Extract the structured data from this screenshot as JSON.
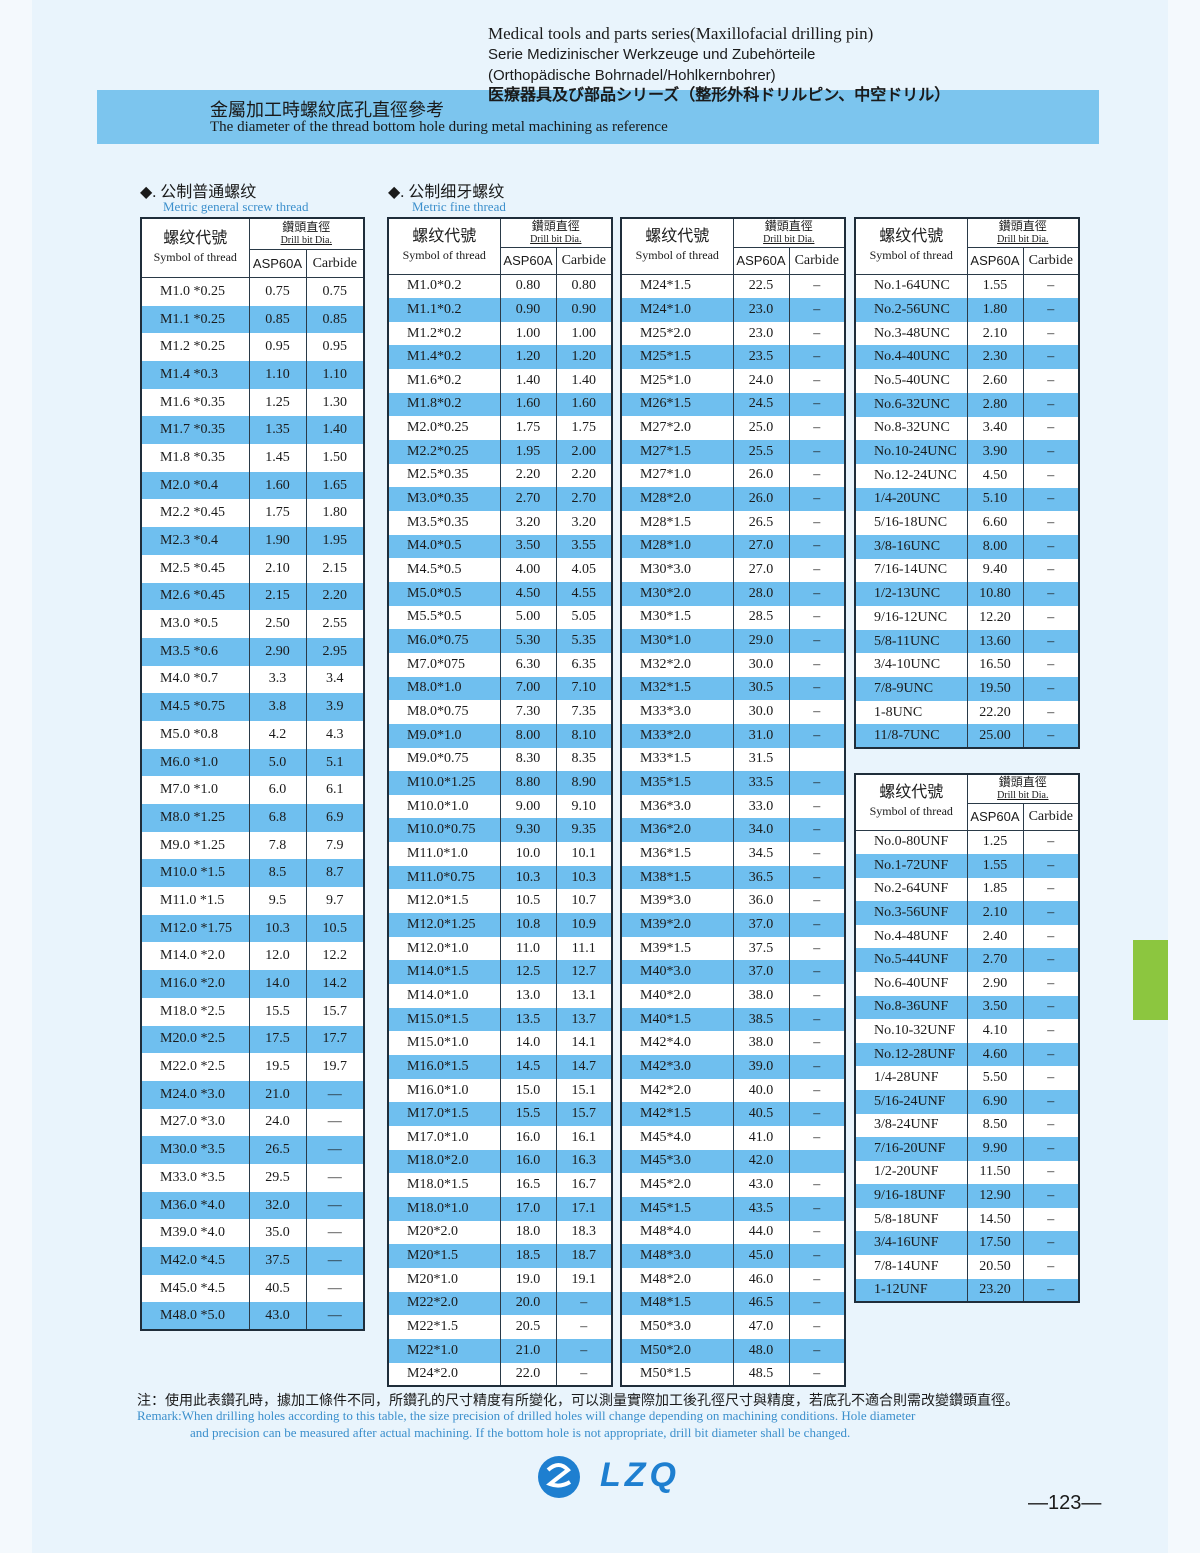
{
  "header": {
    "title_lines": [
      "Medical tools and parts series(Maxillofacial drilling pin)",
      "Serie Medizinischer Werkzeuge und Zubehörteile",
      "(Orthopädische Bohrnadel/Hohlkernbohrer)",
      "医療器具及び部品シリーズ（整形外科ドリルピン、中空ドリル）"
    ]
  },
  "banner": {
    "title_zh": "金屬加工時螺紋底孔直徑參考",
    "title_en": "The diameter of the thread bottom hole during metal machining as reference"
  },
  "sections": [
    {
      "title": "◆. 公制普通螺纹",
      "subtitle": "Metric general screw thread"
    },
    {
      "title": "◆. 公制细牙螺纹",
      "subtitle": "Metric fine thread"
    }
  ],
  "table_header": {
    "symbol_zh": "螺纹代號",
    "symbol_en": "Symbol of thread",
    "drill_zh": "鑽頭直徑",
    "drill_en": "Drill bit Dia.",
    "asp": "ASP60A",
    "carbide": "Carbide"
  },
  "tables": [
    {
      "rows": [
        [
          "M1.0 *0.25",
          "0.75",
          "0.75"
        ],
        [
          "M1.1 *0.25",
          "0.85",
          "0.85"
        ],
        [
          "M1.2 *0.25",
          "0.95",
          "0.95"
        ],
        [
          "M1.4 *0.3",
          "1.10",
          "1.10"
        ],
        [
          "M1.6 *0.35",
          "1.25",
          "1.30"
        ],
        [
          "M1.7 *0.35",
          "1.35",
          "1.40"
        ],
        [
          "M1.8 *0.35",
          "1.45",
          "1.50"
        ],
        [
          "M2.0 *0.4",
          "1.60",
          "1.65"
        ],
        [
          "M2.2 *0.45",
          "1.75",
          "1.80"
        ],
        [
          "M2.3 *0.4",
          "1.90",
          "1.95"
        ],
        [
          "M2.5 *0.45",
          "2.10",
          "2.15"
        ],
        [
          "M2.6 *0.45",
          "2.15",
          "2.20"
        ],
        [
          "M3.0 *0.5",
          "2.50",
          "2.55"
        ],
        [
          "M3.5 *0.6",
          "2.90",
          "2.95"
        ],
        [
          "M4.0 *0.7",
          "3.3",
          "3.4"
        ],
        [
          "M4.5 *0.75",
          "3.8",
          "3.9"
        ],
        [
          "M5.0 *0.8",
          "4.2",
          "4.3"
        ],
        [
          "M6.0 *1.0",
          "5.0",
          "5.1"
        ],
        [
          "M7.0 *1.0",
          "6.0",
          "6.1"
        ],
        [
          "M8.0 *1.25",
          "6.8",
          "6.9"
        ],
        [
          "M9.0 *1.25",
          "7.8",
          "7.9"
        ],
        [
          "M10.0 *1.5",
          "8.5",
          "8.7"
        ],
        [
          "M11.0 *1.5",
          "9.5",
          "9.7"
        ],
        [
          "M12.0 *1.75",
          "10.3",
          "10.5"
        ],
        [
          "M14.0 *2.0",
          "12.0",
          "12.2"
        ],
        [
          "M16.0 *2.0",
          "14.0",
          "14.2"
        ],
        [
          "M18.0 *2.5",
          "15.5",
          "15.7"
        ],
        [
          "M20.0 *2.5",
          "17.5",
          "17.7"
        ],
        [
          "M22.0 *2.5",
          "19.5",
          "19.7"
        ],
        [
          "M24.0 *3.0",
          "21.0",
          "—"
        ],
        [
          "M27.0 *3.0",
          "24.0",
          "—"
        ],
        [
          "M30.0 *3.5",
          "26.5",
          "—"
        ],
        [
          "M33.0 *3.5",
          "29.5",
          "—"
        ],
        [
          "M36.0 *4.0",
          "32.0",
          "—"
        ],
        [
          "M39.0 *4.0",
          "35.0",
          "—"
        ],
        [
          "M42.0 *4.5",
          "37.5",
          "—"
        ],
        [
          "M45.0 *4.5",
          "40.5",
          "—"
        ],
        [
          "M48.0 *5.0",
          "43.0",
          "—"
        ]
      ]
    },
    {
      "rows": [
        [
          "M1.0*0.2",
          "0.80",
          "0.80"
        ],
        [
          "M1.1*0.2",
          "0.90",
          "0.90"
        ],
        [
          "M1.2*0.2",
          "1.00",
          "1.00"
        ],
        [
          "M1.4*0.2",
          "1.20",
          "1.20"
        ],
        [
          "M1.6*0.2",
          "1.40",
          "1.40"
        ],
        [
          "M1.8*0.2",
          "1.60",
          "1.60"
        ],
        [
          "M2.0*0.25",
          "1.75",
          "1.75"
        ],
        [
          "M2.2*0.25",
          "1.95",
          "2.00"
        ],
        [
          "M2.5*0.35",
          "2.20",
          "2.20"
        ],
        [
          "M3.0*0.35",
          "2.70",
          "2.70"
        ],
        [
          "M3.5*0.35",
          "3.20",
          "3.20"
        ],
        [
          "M4.0*0.5",
          "3.50",
          "3.55"
        ],
        [
          "M4.5*0.5",
          "4.00",
          "4.05"
        ],
        [
          "M5.0*0.5",
          "4.50",
          "4.55"
        ],
        [
          "M5.5*0.5",
          "5.00",
          "5.05"
        ],
        [
          "M6.0*0.75",
          "5.30",
          "5.35"
        ],
        [
          "M7.0*075",
          "6.30",
          "6.35"
        ],
        [
          "M8.0*1.0",
          "7.00",
          "7.10"
        ],
        [
          "M8.0*0.75",
          "7.30",
          "7.35"
        ],
        [
          "M9.0*1.0",
          "8.00",
          "8.10"
        ],
        [
          "M9.0*0.75",
          "8.30",
          "8.35"
        ],
        [
          "M10.0*1.25",
          "8.80",
          "8.90"
        ],
        [
          "M10.0*1.0",
          "9.00",
          "9.10"
        ],
        [
          "M10.0*0.75",
          "9.30",
          "9.35"
        ],
        [
          "M11.0*1.0",
          "10.0",
          "10.1"
        ],
        [
          "M11.0*0.75",
          "10.3",
          "10.3"
        ],
        [
          "M12.0*1.5",
          "10.5",
          "10.7"
        ],
        [
          "M12.0*1.25",
          "10.8",
          "10.9"
        ],
        [
          "M12.0*1.0",
          "11.0",
          "11.1"
        ],
        [
          "M14.0*1.5",
          "12.5",
          "12.7"
        ],
        [
          "M14.0*1.0",
          "13.0",
          "13.1"
        ],
        [
          "M15.0*1.5",
          "13.5",
          "13.7"
        ],
        [
          "M15.0*1.0",
          "14.0",
          "14.1"
        ],
        [
          "M16.0*1.5",
          "14.5",
          "14.7"
        ],
        [
          "M16.0*1.0",
          "15.0",
          "15.1"
        ],
        [
          "M17.0*1.5",
          "15.5",
          "15.7"
        ],
        [
          "M17.0*1.0",
          "16.0",
          "16.1"
        ],
        [
          "M18.0*2.0",
          "16.0",
          "16.3"
        ],
        [
          "M18.0*1.5",
          "16.5",
          "16.7"
        ],
        [
          "M18.0*1.0",
          "17.0",
          "17.1"
        ],
        [
          "M20*2.0",
          "18.0",
          "18.3"
        ],
        [
          "M20*1.5",
          "18.5",
          "18.7"
        ],
        [
          "M20*1.0",
          "19.0",
          "19.1"
        ],
        [
          "M22*2.0",
          "20.0",
          "–"
        ],
        [
          "M22*1.5",
          "20.5",
          "–"
        ],
        [
          "M22*1.0",
          "21.0",
          "–"
        ],
        [
          "M24*2.0",
          "22.0",
          "–"
        ]
      ]
    },
    {
      "rows": [
        [
          "M24*1.5",
          "22.5",
          "–"
        ],
        [
          "M24*1.0",
          "23.0",
          "–"
        ],
        [
          "M25*2.0",
          "23.0",
          "–"
        ],
        [
          "M25*1.5",
          "23.5",
          "–"
        ],
        [
          "M25*1.0",
          "24.0",
          "–"
        ],
        [
          "M26*1.5",
          "24.5",
          "–"
        ],
        [
          "M27*2.0",
          "25.0",
          "–"
        ],
        [
          "M27*1.5",
          "25.5",
          "–"
        ],
        [
          "M27*1.0",
          "26.0",
          "–"
        ],
        [
          "M28*2.0",
          "26.0",
          "–"
        ],
        [
          "M28*1.5",
          "26.5",
          "–"
        ],
        [
          "M28*1.0",
          "27.0",
          "–"
        ],
        [
          "M30*3.0",
          "27.0",
          "–"
        ],
        [
          "M30*2.0",
          "28.0",
          "–"
        ],
        [
          "M30*1.5",
          "28.5",
          "–"
        ],
        [
          "M30*1.0",
          "29.0",
          "–"
        ],
        [
          "M32*2.0",
          "30.0",
          "–"
        ],
        [
          "M32*1.5",
          "30.5",
          "–"
        ],
        [
          "M33*3.0",
          "30.0",
          "–"
        ],
        [
          "M33*2.0",
          "31.0",
          "–"
        ],
        [
          "M33*1.5",
          "31.5",
          null
        ],
        [
          "M35*1.5",
          "33.5",
          "–"
        ],
        [
          "M36*3.0",
          "33.0",
          "–"
        ],
        [
          "M36*2.0",
          "34.0",
          "–"
        ],
        [
          "M36*1.5",
          "34.5",
          "–"
        ],
        [
          "M38*1.5",
          "36.5",
          "–"
        ],
        [
          "M39*3.0",
          "36.0",
          "–"
        ],
        [
          "M39*2.0",
          "37.0",
          "–"
        ],
        [
          "M39*1.5",
          "37.5",
          "–"
        ],
        [
          "M40*3.0",
          "37.0",
          "–"
        ],
        [
          "M40*2.0",
          "38.0",
          "–"
        ],
        [
          "M40*1.5",
          "38.5",
          "–"
        ],
        [
          "M42*4.0",
          "38.0",
          "–"
        ],
        [
          "M42*3.0",
          "39.0",
          "–"
        ],
        [
          "M42*2.0",
          "40.0",
          "–"
        ],
        [
          "M42*1.5",
          "40.5",
          "–"
        ],
        [
          "M45*4.0",
          "41.0",
          "–"
        ],
        [
          "M45*3.0",
          "42.0",
          null
        ],
        [
          "M45*2.0",
          "43.0",
          "–"
        ],
        [
          "M45*1.5",
          "43.5",
          "–"
        ],
        [
          "M48*4.0",
          "44.0",
          "–"
        ],
        [
          "M48*3.0",
          "45.0",
          "–"
        ],
        [
          "M48*2.0",
          "46.0",
          "–"
        ],
        [
          "M48*1.5",
          "46.5",
          "–"
        ],
        [
          "M50*3.0",
          "47.0",
          "–"
        ],
        [
          "M50*2.0",
          "48.0",
          "–"
        ],
        [
          "M50*1.5",
          "48.5",
          "–"
        ]
      ]
    },
    {
      "rows": [
        [
          "No.1-64UNC",
          "1.55",
          "–"
        ],
        [
          "No.2-56UNC",
          "1.80",
          "–"
        ],
        [
          "No.3-48UNC",
          "2.10",
          "–"
        ],
        [
          "No.4-40UNC",
          "2.30",
          "–"
        ],
        [
          "No.5-40UNC",
          "2.60",
          "–"
        ],
        [
          "No.6-32UNC",
          "2.80",
          "–"
        ],
        [
          "No.8-32UNC",
          "3.40",
          "–"
        ],
        [
          "No.10-24UNC",
          "3.90",
          "–"
        ],
        [
          "No.12-24UNC",
          "4.50",
          "–"
        ],
        [
          "1/4-20UNC",
          "5.10",
          "–"
        ],
        [
          "5/16-18UNC",
          "6.60",
          "–"
        ],
        [
          "3/8-16UNC",
          "8.00",
          "–"
        ],
        [
          "7/16-14UNC",
          "9.40",
          "–"
        ],
        [
          "1/2-13UNC",
          "10.80",
          "–"
        ],
        [
          "9/16-12UNC",
          "12.20",
          "–"
        ],
        [
          "5/8-11UNC",
          "13.60",
          "–"
        ],
        [
          "3/4-10UNC",
          "16.50",
          "–"
        ],
        [
          "7/8-9UNC",
          "19.50",
          "–"
        ],
        [
          "1-8UNC",
          "22.20",
          "–"
        ],
        [
          "11/8-7UNC",
          "25.00",
          "–"
        ]
      ]
    },
    {
      "rows": [
        [
          "No.0-80UNF",
          "1.25",
          "–"
        ],
        [
          "No.1-72UNF",
          "1.55",
          "–"
        ],
        [
          "No.2-64UNF",
          "1.85",
          "–"
        ],
        [
          "No.3-56UNF",
          "2.10",
          "–"
        ],
        [
          "No.4-48UNF",
          "2.40",
          "–"
        ],
        [
          "No.5-44UNF",
          "2.70",
          "–"
        ],
        [
          "No.6-40UNF",
          "2.90",
          "–"
        ],
        [
          "No.8-36UNF",
          "3.50",
          "–"
        ],
        [
          "No.10-32UNF",
          "4.10",
          "–"
        ],
        [
          "No.12-28UNF",
          "4.60",
          "–"
        ],
        [
          "1/4-28UNF",
          "5.50",
          "–"
        ],
        [
          "5/16-24UNF",
          "6.90",
          "–"
        ],
        [
          "3/8-24UNF",
          "8.50",
          "–"
        ],
        [
          "7/16-20UNF",
          "9.90",
          "–"
        ],
        [
          "1/2-20UNF",
          "11.50",
          "–"
        ],
        [
          "9/16-18UNF",
          "12.90",
          "–"
        ],
        [
          "5/8-18UNF",
          "14.50",
          "–"
        ],
        [
          "3/4-16UNF",
          "17.50",
          "–"
        ],
        [
          "7/8-14UNF",
          "20.50",
          "–"
        ],
        [
          "1-12UNF",
          "23.20",
          "–"
        ]
      ]
    }
  ],
  "footer": {
    "note_zh": "注：使用此表鑽孔時，據加工條件不同，所鑽孔的尺寸精度有所變化，可以測量實際加工後孔徑尺寸與精度，若底孔不適合則需改變鑽頭直徑。",
    "remark_lines": [
      "Remark:When drilling holes according to this table, the size precision of drilled holes will change depending on machining conditions. Hole diameter",
      "and precision can be measured after actual machining. If the bottom hole is not appropriate, drill bit diameter shall be changed."
    ],
    "logo": "LZQ",
    "page": "—123—"
  }
}
